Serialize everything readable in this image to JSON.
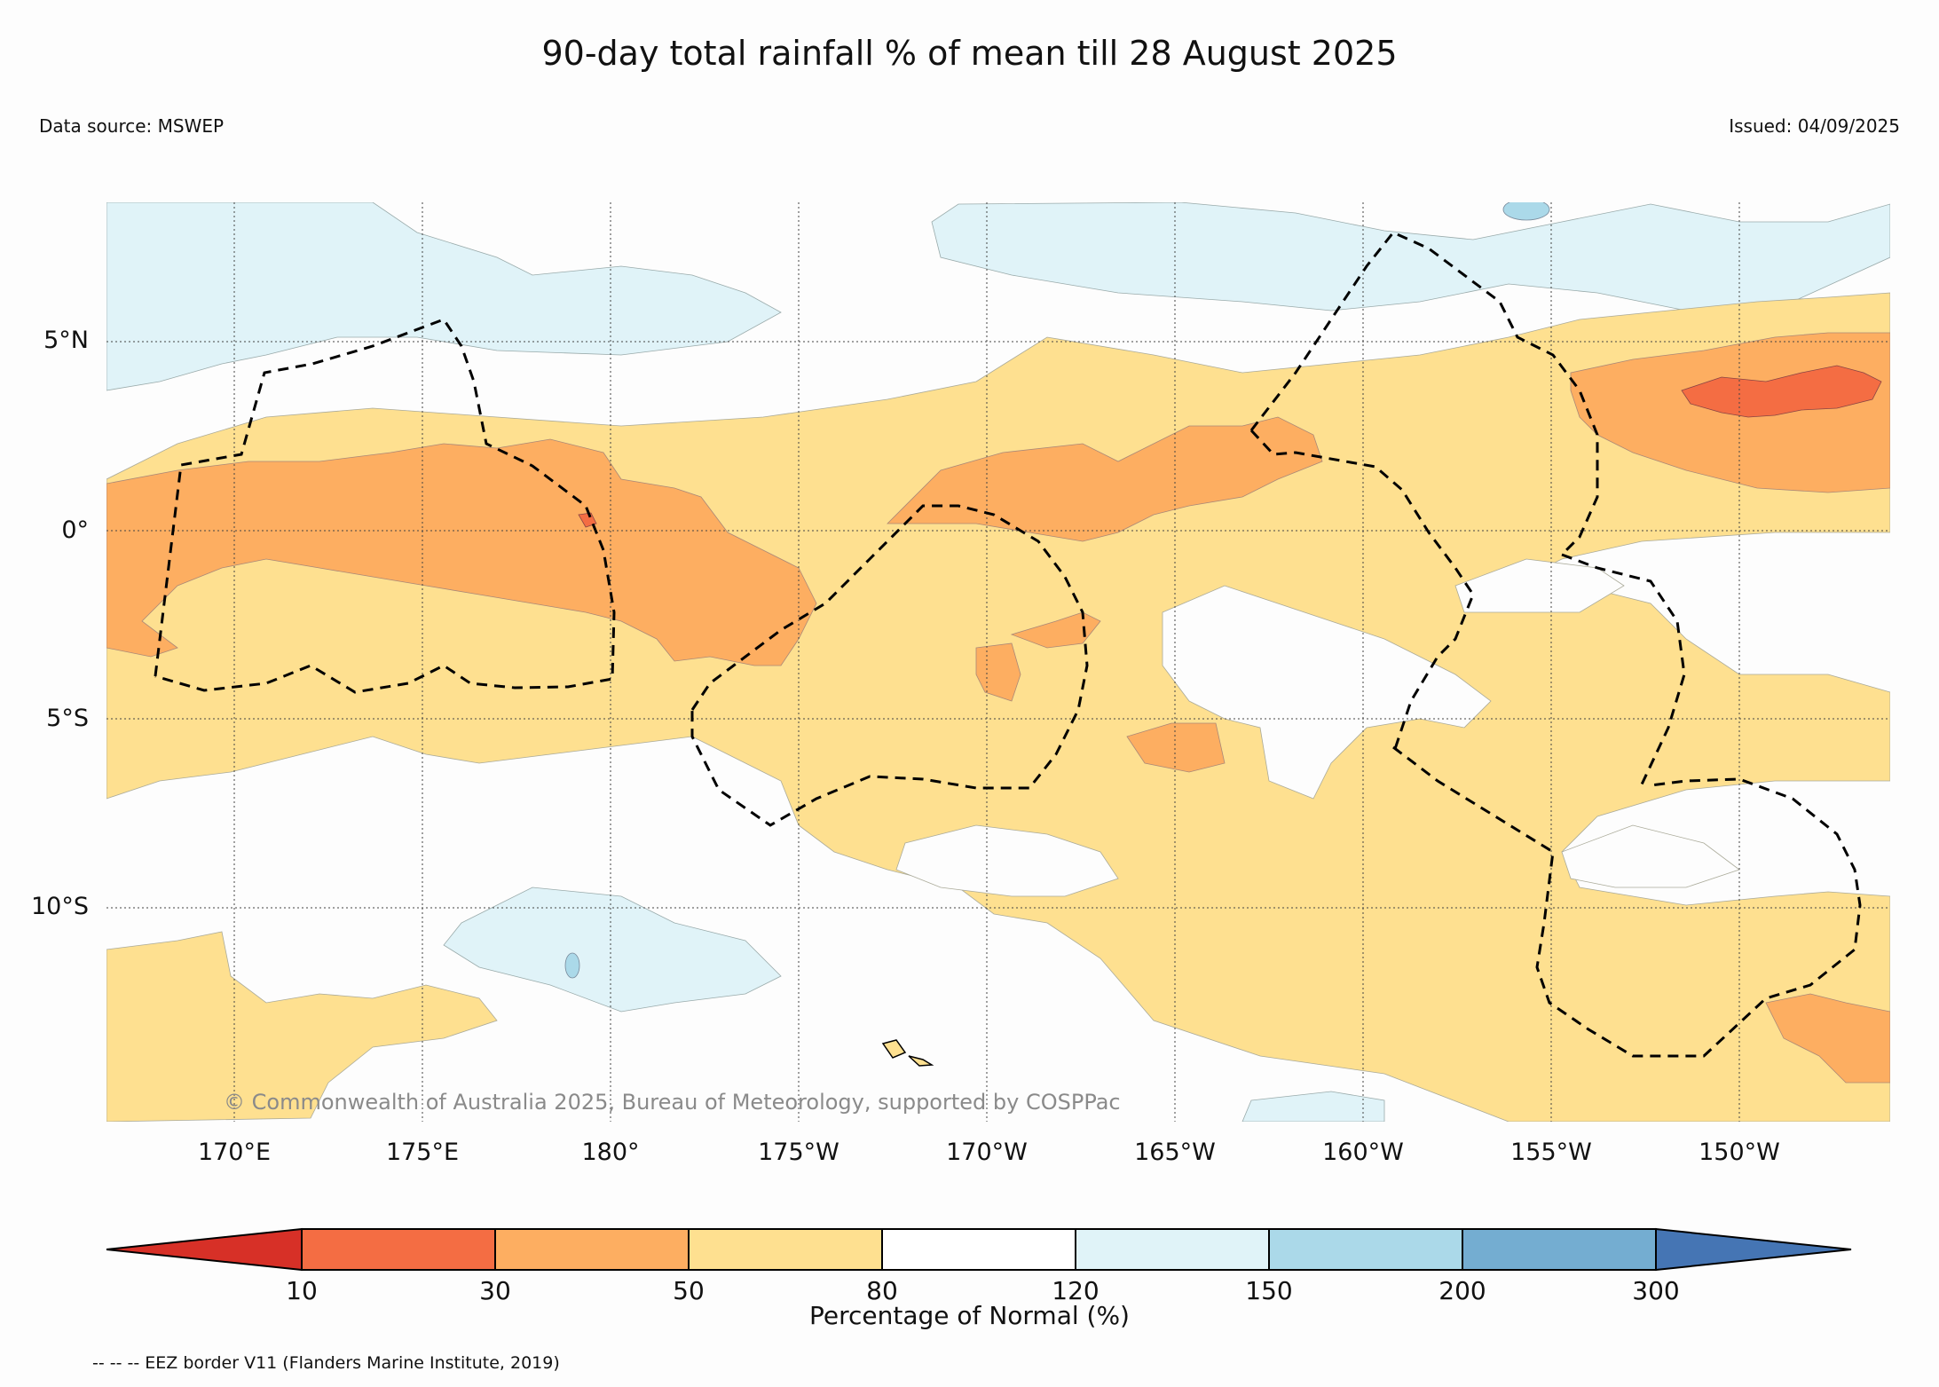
{
  "title": "90-day total rainfall % of mean till 28 August 2025",
  "data_source": "Data source: MSWEP",
  "issued": "Issued: 04/09/2025",
  "credit": "© Commonwealth of Australia 2025, Bureau of Meteorology, supported by COSPPac",
  "eez_note": "-- -- -- EEZ border V11 (Flanders Marine Institute, 2019)",
  "lat_labels": [
    "5°N",
    "0°",
    "5°S",
    "10°S"
  ],
  "lon_labels": [
    "170°E",
    "175°E",
    "180°",
    "175°W",
    "170°W",
    "165°W",
    "160°W",
    "155°W",
    "150°W"
  ],
  "colorbar": {
    "label": "Percentage of Normal (%)",
    "ticks": [
      "10",
      "30",
      "50",
      "80",
      "120",
      "150",
      "200",
      "300"
    ],
    "colors": [
      "#d73027",
      "#f46d43",
      "#fdae61",
      "#fee090",
      "#ffffff",
      "#e0f3f8",
      "#abd9e9",
      "#74add1",
      "#4575b4"
    ]
  },
  "legend_colors": {
    "very_dry": "#f46d43",
    "dry": "#fdae61",
    "below": "#fee090",
    "normal": "#ffffff",
    "above": "#e0f3f8",
    "wet": "#abd9e9"
  }
}
